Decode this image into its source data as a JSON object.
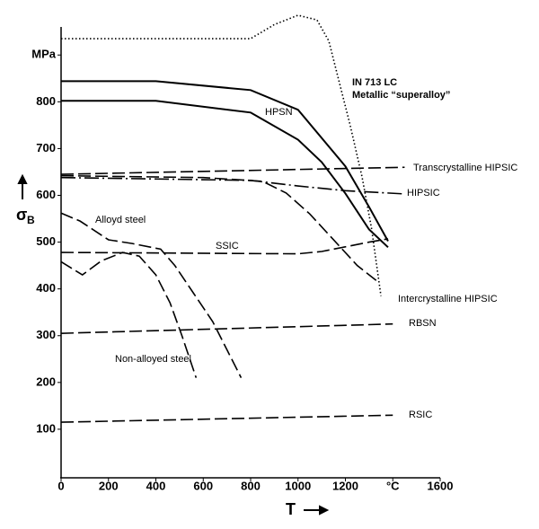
{
  "chart_data": {
    "type": "line",
    "xlabel": "T",
    "ylabel": "σ",
    "ylabel_subscript": "B",
    "xlim": [
      0,
      1600
    ],
    "ylim": [
      0,
      960
    ],
    "xticks": [
      0,
      200,
      400,
      600,
      800,
      1000,
      1200,
      {
        "value": 1400,
        "label": "°C"
      },
      1600
    ],
    "yticks": [
      100,
      200,
      300,
      400,
      500,
      600,
      700,
      800,
      {
        "value": 900,
        "label": "MPa"
      }
    ],
    "annotations": [
      "Metallic “superalloy”"
    ],
    "series": [
      {
        "name": "IN 713 LC",
        "color": "#000",
        "dash": "dotted",
        "x": [
          0,
          800,
          900,
          1000,
          1080,
          1130,
          1170,
          1220,
          1270,
          1310,
          1350
        ],
        "values": [
          935,
          935,
          965,
          985,
          975,
          930,
          850,
          750,
          640,
          530,
          385
        ]
      },
      {
        "name": "HPSN",
        "color": "#000",
        "dash": "solid",
        "x": [
          0,
          400,
          800,
          1000,
          1200,
          1300,
          1380
        ],
        "values": [
          844,
          844,
          825,
          783,
          662,
          575,
          502
        ]
      },
      {
        "color": "#000",
        "dash": "solid",
        "x": [
          0,
          400,
          800,
          1000,
          1100,
          1200,
          1300,
          1380
        ],
        "values": [
          802,
          802,
          777,
          719,
          671,
          604,
          527,
          489
        ]
      },
      {
        "name": "Transcrystalline HIPSIC",
        "color": "#000",
        "dash": "dashed",
        "x": [
          0,
          1450
        ],
        "values": [
          645,
          660
        ]
      },
      {
        "name": "HIPSIC",
        "color": "#000",
        "dash": "dashdot",
        "x": [
          0,
          800,
          1000,
          1200,
          1450
        ],
        "values": [
          638,
          632,
          620,
          610,
          603
        ]
      },
      {
        "name": "Intercrystalline HIPSIC",
        "color": "#000",
        "dash": "dashed",
        "x": [
          0,
          600,
          850,
          950,
          1050,
          1150,
          1250,
          1330
        ],
        "values": [
          642,
          638,
          630,
          605,
          560,
          505,
          450,
          418
        ]
      },
      {
        "name": "SSIC",
        "color": "#000",
        "dash": "dashed",
        "x": [
          0,
          1000,
          1100,
          1200,
          1300,
          1380
        ],
        "values": [
          478,
          475,
          480,
          490,
          500,
          507
        ]
      },
      {
        "name": "Alloyd steel",
        "color": "#000",
        "dash": "dashed",
        "x": [
          0,
          80,
          200,
          300,
          420,
          480,
          560,
          640,
          700,
          760
        ],
        "values": [
          562,
          545,
          505,
          497,
          485,
          450,
          390,
          330,
          270,
          210
        ]
      },
      {
        "name": "Non-alloyed steel",
        "color": "#000",
        "dash": "dashed",
        "x": [
          0,
          90,
          170,
          260,
          330,
          400,
          460,
          510,
          570
        ],
        "values": [
          458,
          430,
          460,
          478,
          470,
          430,
          370,
          300,
          210
        ]
      },
      {
        "name": "RBSN",
        "color": "#000",
        "dash": "dashed",
        "x": [
          0,
          1400
        ],
        "values": [
          305,
          325
        ]
      },
      {
        "name": "RSIC",
        "color": "#000",
        "dash": "dashed",
        "x": [
          0,
          1400
        ],
        "values": [
          115,
          130
        ]
      }
    ]
  }
}
